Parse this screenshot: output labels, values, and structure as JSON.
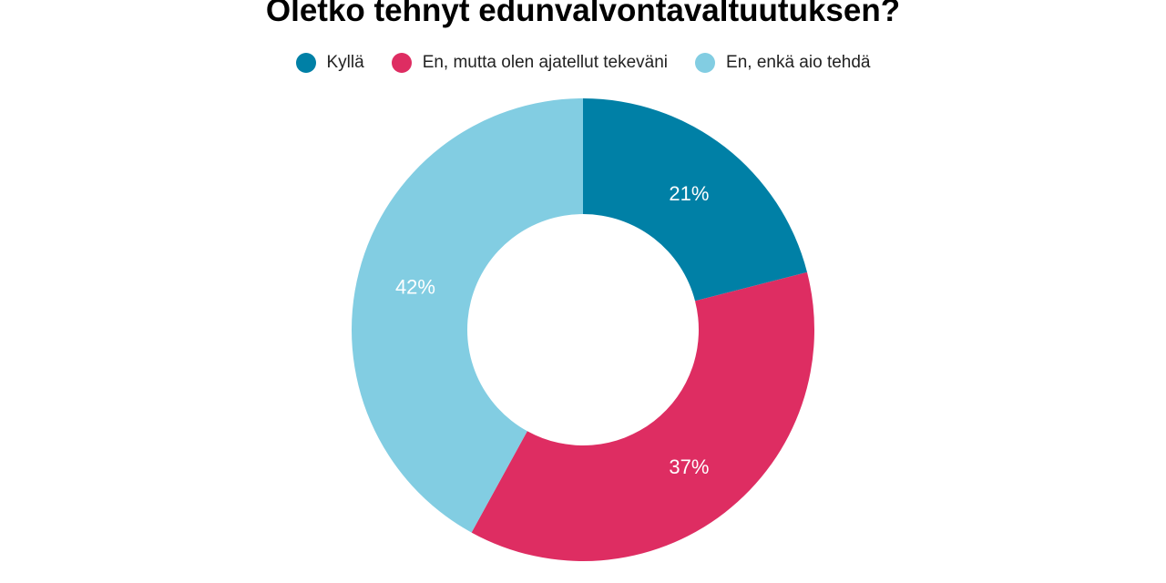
{
  "chart_data": {
    "type": "pie",
    "donut": true,
    "title": "Oletko tehnyt edunvalvontavaltuutuksen?",
    "categories": [
      "Kyllä",
      "En, mutta olen ajatellut tekeväni",
      "En, enkä aio tehdä"
    ],
    "values": [
      21,
      37,
      42
    ],
    "labels": [
      "21%",
      "37%",
      "42%"
    ],
    "colors": [
      "#0080a6",
      "#de2d62",
      "#82cde2"
    ],
    "legend_position": "top"
  }
}
